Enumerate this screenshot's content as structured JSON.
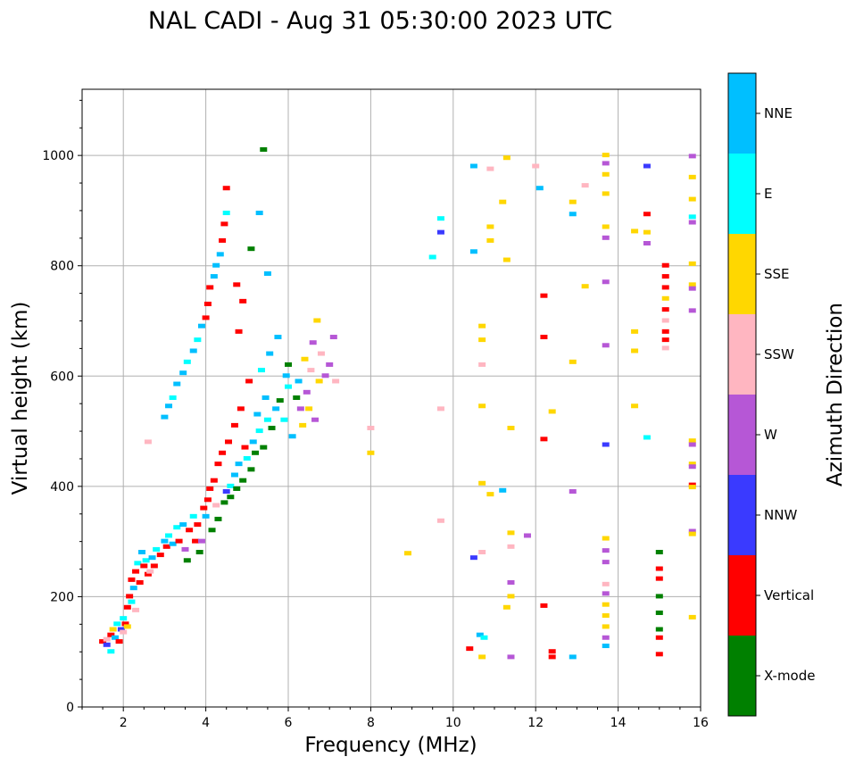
{
  "chart_data": {
    "type": "scatter",
    "title": "NAL CADI - Aug 31 05:30:00 2023 UTC",
    "xlabel": "Frequency (MHz)",
    "ylabel": "Virtual height (km)",
    "xlim": [
      1,
      16
    ],
    "ylim": [
      0,
      1120
    ],
    "xticks": [
      2,
      4,
      6,
      8,
      10,
      12,
      14,
      16
    ],
    "yticks": [
      0,
      200,
      400,
      600,
      800,
      1000
    ],
    "grid": true,
    "colorbar": {
      "label": "Azimuth Direction",
      "categories": [
        {
          "name": "X-mode",
          "color": "#008000"
        },
        {
          "name": "Vertical",
          "color": "#ff0000"
        },
        {
          "name": "NNW",
          "color": "#3a3aff"
        },
        {
          "name": "W",
          "color": "#b657d6"
        },
        {
          "name": "SSW",
          "color": "#ffb6c1"
        },
        {
          "name": "SSE",
          "color": "#ffd700"
        },
        {
          "name": "E",
          "color": "#00ffff"
        },
        {
          "name": "NNE",
          "color": "#00bfff"
        }
      ]
    },
    "points": [
      [
        1.5,
        118,
        "Vertical"
      ],
      [
        1.6,
        112,
        "NNW"
      ],
      [
        1.6,
        122,
        "SSW"
      ],
      [
        1.7,
        130,
        "Vertical"
      ],
      [
        1.7,
        100,
        "E"
      ],
      [
        1.75,
        140,
        "SSE"
      ],
      [
        1.8,
        125,
        "NNE"
      ],
      [
        1.85,
        150,
        "E"
      ],
      [
        1.9,
        118,
        "Vertical"
      ],
      [
        1.95,
        140,
        "NNW"
      ],
      [
        2.0,
        135,
        "SSW"
      ],
      [
        2.0,
        160,
        "E"
      ],
      [
        2.05,
        150,
        "Vertical"
      ],
      [
        2.1,
        180,
        "Vertical"
      ],
      [
        2.1,
        145,
        "SSE"
      ],
      [
        2.15,
        200,
        "Vertical"
      ],
      [
        2.2,
        190,
        "E"
      ],
      [
        2.2,
        230,
        "Vertical"
      ],
      [
        2.25,
        215,
        "NNE"
      ],
      [
        2.3,
        245,
        "Vertical"
      ],
      [
        2.3,
        175,
        "SSW"
      ],
      [
        2.35,
        260,
        "E"
      ],
      [
        2.4,
        225,
        "Vertical"
      ],
      [
        2.45,
        280,
        "NNE"
      ],
      [
        2.5,
        255,
        "Vertical"
      ],
      [
        2.55,
        265,
        "E"
      ],
      [
        2.6,
        240,
        "Vertical"
      ],
      [
        2.65,
        245,
        "SSW"
      ],
      [
        2.7,
        270,
        "NNE"
      ],
      [
        2.75,
        255,
        "Vertical"
      ],
      [
        2.8,
        285,
        "E"
      ],
      [
        2.9,
        275,
        "Vertical"
      ],
      [
        3.0,
        300,
        "NNE"
      ],
      [
        3.05,
        290,
        "Vertical"
      ],
      [
        3.1,
        310,
        "E"
      ],
      [
        3.2,
        295,
        "NNE"
      ],
      [
        3.3,
        325,
        "E"
      ],
      [
        3.35,
        300,
        "Vertical"
      ],
      [
        3.45,
        330,
        "NNE"
      ],
      [
        3.5,
        285,
        "W"
      ],
      [
        3.55,
        265,
        "X-mode"
      ],
      [
        3.6,
        320,
        "Vertical"
      ],
      [
        3.7,
        345,
        "E"
      ],
      [
        3.75,
        300,
        "Vertical"
      ],
      [
        3.8,
        330,
        "Vertical"
      ],
      [
        3.85,
        280,
        "X-mode"
      ],
      [
        3.9,
        300,
        "W"
      ],
      [
        3.95,
        360,
        "Vertical"
      ],
      [
        4.0,
        345,
        "NNE"
      ],
      [
        4.05,
        375,
        "Vertical"
      ],
      [
        4.1,
        395,
        "Vertical"
      ],
      [
        4.15,
        320,
        "X-mode"
      ],
      [
        4.2,
        410,
        "Vertical"
      ],
      [
        4.25,
        365,
        "SSW"
      ],
      [
        4.3,
        440,
        "Vertical"
      ],
      [
        4.3,
        340,
        "X-mode"
      ],
      [
        4.4,
        460,
        "Vertical"
      ],
      [
        4.45,
        370,
        "X-mode"
      ],
      [
        4.5,
        390,
        "NNW"
      ],
      [
        4.55,
        480,
        "Vertical"
      ],
      [
        4.6,
        400,
        "E"
      ],
      [
        4.6,
        380,
        "X-mode"
      ],
      [
        4.7,
        420,
        "NNE"
      ],
      [
        4.7,
        510,
        "Vertical"
      ],
      [
        4.75,
        395,
        "X-mode"
      ],
      [
        4.8,
        440,
        "NNE"
      ],
      [
        4.85,
        540,
        "Vertical"
      ],
      [
        4.9,
        410,
        "X-mode"
      ],
      [
        4.95,
        470,
        "Vertical"
      ],
      [
        5.0,
        450,
        "E"
      ],
      [
        5.05,
        590,
        "Vertical"
      ],
      [
        5.1,
        430,
        "X-mode"
      ],
      [
        5.15,
        480,
        "NNE"
      ],
      [
        5.2,
        460,
        "X-mode"
      ],
      [
        5.25,
        530,
        "NNE"
      ],
      [
        5.3,
        500,
        "E"
      ],
      [
        5.35,
        610,
        "E"
      ],
      [
        5.4,
        470,
        "X-mode"
      ],
      [
        5.45,
        560,
        "NNE"
      ],
      [
        5.5,
        520,
        "E"
      ],
      [
        5.55,
        640,
        "NNE"
      ],
      [
        5.6,
        505,
        "X-mode"
      ],
      [
        5.7,
        540,
        "NNE"
      ],
      [
        5.75,
        670,
        "NNE"
      ],
      [
        5.8,
        555,
        "X-mode"
      ],
      [
        5.9,
        520,
        "E"
      ],
      [
        5.95,
        600,
        "NNE"
      ],
      [
        6.0,
        580,
        "E"
      ],
      [
        6.0,
        620,
        "X-mode"
      ],
      [
        6.1,
        490,
        "NNE"
      ],
      [
        6.2,
        560,
        "X-mode"
      ],
      [
        6.25,
        590,
        "NNE"
      ],
      [
        6.3,
        540,
        "W"
      ],
      [
        6.35,
        510,
        "SSE"
      ],
      [
        6.4,
        630,
        "SSE"
      ],
      [
        6.45,
        570,
        "W"
      ],
      [
        6.5,
        540,
        "SSE"
      ],
      [
        6.55,
        610,
        "SSW"
      ],
      [
        6.6,
        660,
        "W"
      ],
      [
        6.65,
        520,
        "W"
      ],
      [
        6.7,
        700,
        "SSE"
      ],
      [
        6.75,
        590,
        "SSE"
      ],
      [
        6.8,
        640,
        "SSW"
      ],
      [
        6.9,
        600,
        "W"
      ],
      [
        7.0,
        620,
        "W"
      ],
      [
        7.1,
        670,
        "W"
      ],
      [
        7.15,
        590,
        "SSW"
      ],
      [
        3.0,
        525,
        "NNE"
      ],
      [
        3.1,
        545,
        "NNE"
      ],
      [
        3.2,
        560,
        "E"
      ],
      [
        3.3,
        585,
        "NNE"
      ],
      [
        3.45,
        605,
        "NNE"
      ],
      [
        3.55,
        625,
        "E"
      ],
      [
        3.7,
        645,
        "NNE"
      ],
      [
        3.8,
        665,
        "E"
      ],
      [
        3.9,
        690,
        "NNE"
      ],
      [
        4.0,
        705,
        "Vertical"
      ],
      [
        4.05,
        730,
        "Vertical"
      ],
      [
        4.1,
        760,
        "Vertical"
      ],
      [
        4.2,
        780,
        "NNE"
      ],
      [
        4.25,
        800,
        "NNE"
      ],
      [
        4.35,
        820,
        "NNE"
      ],
      [
        4.4,
        845,
        "Vertical"
      ],
      [
        4.45,
        875,
        "Vertical"
      ],
      [
        4.5,
        895,
        "E"
      ],
      [
        4.5,
        940,
        "Vertical"
      ],
      [
        4.75,
        765,
        "Vertical"
      ],
      [
        4.8,
        680,
        "Vertical"
      ],
      [
        4.9,
        735,
        "Vertical"
      ],
      [
        5.1,
        830,
        "X-mode"
      ],
      [
        5.3,
        895,
        "NNE"
      ],
      [
        5.4,
        1010,
        "X-mode"
      ],
      [
        5.5,
        785,
        "NNE"
      ],
      [
        2.6,
        480,
        "SSW"
      ],
      [
        8.0,
        505,
        "SSW"
      ],
      [
        8.0,
        460,
        "SSE"
      ],
      [
        8.9,
        278,
        "SSE"
      ],
      [
        9.5,
        815,
        "E"
      ],
      [
        9.7,
        860,
        "NNW"
      ],
      [
        9.7,
        885,
        "E"
      ],
      [
        9.7,
        540,
        "SSW"
      ],
      [
        9.7,
        337,
        "SSW"
      ],
      [
        10.5,
        980,
        "NNE"
      ],
      [
        10.5,
        825,
        "NNE"
      ],
      [
        10.5,
        270,
        "NNW"
      ],
      [
        10.4,
        105,
        "Vertical"
      ],
      [
        10.65,
        130,
        "NNE"
      ],
      [
        10.75,
        125,
        "E"
      ],
      [
        10.7,
        90,
        "SSE"
      ],
      [
        10.7,
        545,
        "SSE"
      ],
      [
        10.7,
        690,
        "SSE"
      ],
      [
        10.7,
        665,
        "SSE"
      ],
      [
        10.7,
        620,
        "SSW"
      ],
      [
        10.7,
        405,
        "SSE"
      ],
      [
        10.7,
        280,
        "SSW"
      ],
      [
        10.9,
        975,
        "SSW"
      ],
      [
        10.9,
        870,
        "SSE"
      ],
      [
        10.9,
        845,
        "SSE"
      ],
      [
        10.9,
        385,
        "SSE"
      ],
      [
        11.2,
        915,
        "SSE"
      ],
      [
        11.2,
        392,
        "NNE"
      ],
      [
        11.3,
        995,
        "SSE"
      ],
      [
        11.3,
        810,
        "SSE"
      ],
      [
        11.3,
        180,
        "SSE"
      ],
      [
        11.4,
        505,
        "SSE"
      ],
      [
        11.4,
        315,
        "SSE"
      ],
      [
        11.4,
        290,
        "SSW"
      ],
      [
        11.4,
        225,
        "W"
      ],
      [
        11.4,
        200,
        "SSE"
      ],
      [
        11.4,
        90,
        "W"
      ],
      [
        11.8,
        310,
        "W"
      ],
      [
        12.0,
        980,
        "SSW"
      ],
      [
        12.1,
        940,
        "NNE"
      ],
      [
        12.2,
        745,
        "Vertical"
      ],
      [
        12.2,
        670,
        "Vertical"
      ],
      [
        12.2,
        485,
        "Vertical"
      ],
      [
        12.2,
        183,
        "Vertical"
      ],
      [
        12.4,
        535,
        "SSE"
      ],
      [
        12.4,
        100,
        "Vertical"
      ],
      [
        12.4,
        90,
        "Vertical"
      ],
      [
        12.9,
        915,
        "SSE"
      ],
      [
        12.9,
        893,
        "NNE"
      ],
      [
        12.9,
        625,
        "SSE"
      ],
      [
        12.9,
        390,
        "W"
      ],
      [
        12.9,
        90,
        "NNE"
      ],
      [
        13.2,
        945,
        "SSW"
      ],
      [
        13.2,
        762,
        "SSE"
      ],
      [
        13.7,
        1000,
        "SSE"
      ],
      [
        13.7,
        985,
        "W"
      ],
      [
        13.7,
        965,
        "SSE"
      ],
      [
        13.7,
        930,
        "SSE"
      ],
      [
        13.7,
        870,
        "SSE"
      ],
      [
        13.7,
        850,
        "W"
      ],
      [
        13.7,
        770,
        "W"
      ],
      [
        13.7,
        655,
        "W"
      ],
      [
        13.7,
        475,
        "NNW"
      ],
      [
        13.7,
        305,
        "SSE"
      ],
      [
        13.7,
        283,
        "W"
      ],
      [
        13.7,
        262,
        "W"
      ],
      [
        13.7,
        222,
        "SSW"
      ],
      [
        13.7,
        205,
        "W"
      ],
      [
        13.7,
        185,
        "SSE"
      ],
      [
        13.7,
        165,
        "SSE"
      ],
      [
        13.7,
        145,
        "SSE"
      ],
      [
        13.7,
        125,
        "W"
      ],
      [
        13.7,
        110,
        "NNE"
      ],
      [
        14.4,
        862,
        "SSE"
      ],
      [
        14.4,
        680,
        "SSE"
      ],
      [
        14.4,
        645,
        "SSE"
      ],
      [
        14.4,
        545,
        "SSE"
      ],
      [
        14.7,
        980,
        "NNW"
      ],
      [
        14.7,
        893,
        "Vertical"
      ],
      [
        14.7,
        860,
        "SSE"
      ],
      [
        14.7,
        840,
        "W"
      ],
      [
        14.7,
        488,
        "E"
      ],
      [
        15.15,
        800,
        "Vertical"
      ],
      [
        15.15,
        780,
        "Vertical"
      ],
      [
        15.15,
        760,
        "Vertical"
      ],
      [
        15.15,
        740,
        "SSE"
      ],
      [
        15.15,
        720,
        "Vertical"
      ],
      [
        15.15,
        700,
        "SSW"
      ],
      [
        15.15,
        680,
        "Vertical"
      ],
      [
        15.15,
        665,
        "Vertical"
      ],
      [
        15.15,
        650,
        "SSW"
      ],
      [
        15.0,
        280,
        "X-mode"
      ],
      [
        15.0,
        250,
        "Vertical"
      ],
      [
        15.0,
        232,
        "Vertical"
      ],
      [
        15.0,
        200,
        "X-mode"
      ],
      [
        15.0,
        170,
        "X-mode"
      ],
      [
        15.0,
        140,
        "X-mode"
      ],
      [
        15.0,
        125,
        "Vertical"
      ],
      [
        15.0,
        95,
        "Vertical"
      ],
      [
        15.8,
        998,
        "W"
      ],
      [
        15.8,
        960,
        "SSE"
      ],
      [
        15.8,
        920,
        "SSE"
      ],
      [
        15.8,
        888,
        "E"
      ],
      [
        15.8,
        878,
        "W"
      ],
      [
        15.8,
        803,
        "SSE"
      ],
      [
        15.8,
        765,
        "SSE"
      ],
      [
        15.8,
        758,
        "W"
      ],
      [
        15.8,
        718,
        "W"
      ],
      [
        15.8,
        482,
        "SSE"
      ],
      [
        15.8,
        475,
        "W"
      ],
      [
        15.8,
        440,
        "SSE"
      ],
      [
        15.8,
        435,
        "W"
      ],
      [
        15.8,
        402,
        "Vertical"
      ],
      [
        15.8,
        398,
        "SSE"
      ],
      [
        15.8,
        318,
        "W"
      ],
      [
        15.8,
        313,
        "SSE"
      ],
      [
        15.8,
        162,
        "SSE"
      ]
    ]
  }
}
